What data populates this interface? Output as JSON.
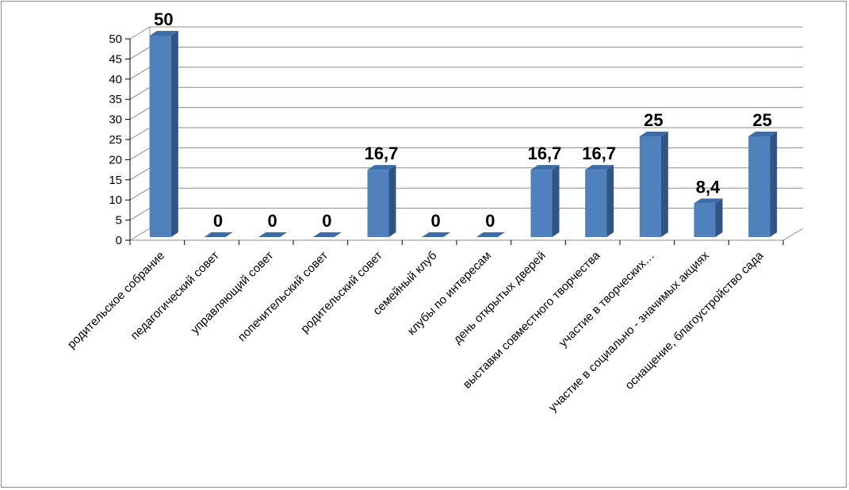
{
  "chart_data": {
    "type": "bar",
    "categories": [
      "родительское собрание",
      "педагогический совет",
      "управляющий совет",
      "попечительский совет",
      "родительский совет",
      "семейный клуб",
      "клубы по интересам",
      "день открытых дверей",
      "выставки совместного творчества",
      "участие в творческих…",
      "участие в социально - значимых акциях",
      "оснащение, благоустройство сада"
    ],
    "values": [
      50,
      0,
      0,
      0,
      16.7,
      0,
      0,
      16.7,
      16.7,
      25,
      8.4,
      25
    ],
    "data_labels": [
      "50",
      "0",
      "0",
      "0",
      "16,7",
      "0",
      "0",
      "16,7",
      "16,7",
      "25",
      "8,4",
      "25"
    ],
    "y_ticks": [
      "0",
      "5",
      "10",
      "15",
      "20",
      "25",
      "30",
      "35",
      "40",
      "45",
      "50"
    ],
    "ylim": [
      0,
      50
    ],
    "grid": true,
    "legend": "none",
    "colors": {
      "bar_front": "#4f81bd",
      "bar_side": "#2f5486",
      "bar_top": "#3d6da6",
      "grid": "#8c8c8c"
    }
  }
}
